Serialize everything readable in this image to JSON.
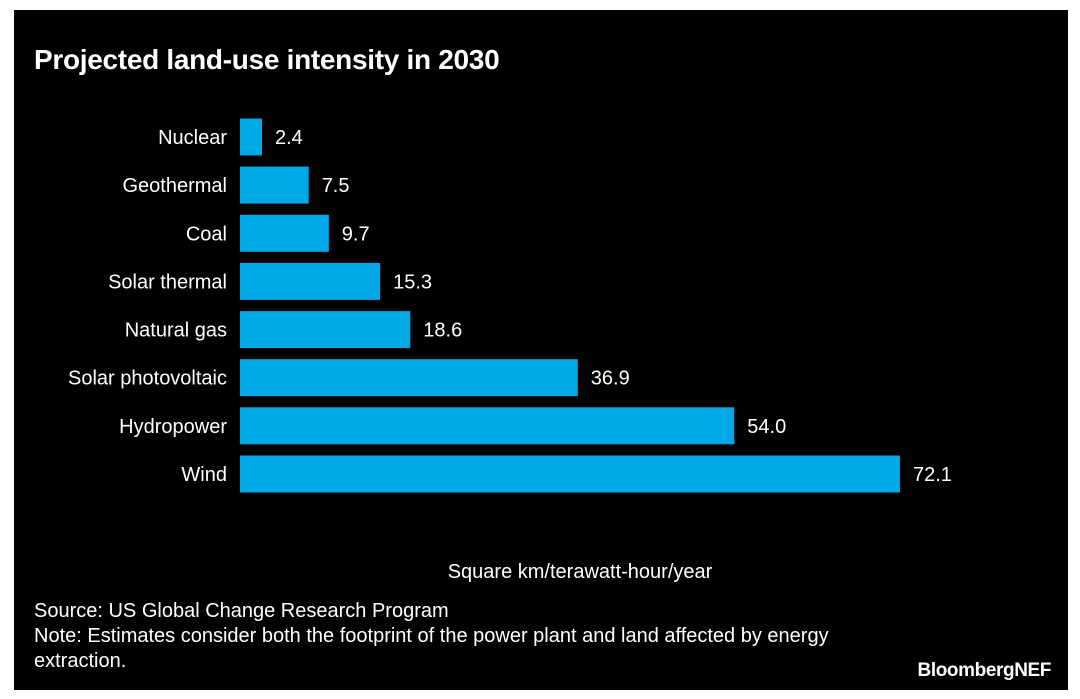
{
  "title": "Projected land-use intensity in 2030",
  "xlabel": "Square km/terawatt-hour/year",
  "source": "Source: US Global Change Research Program",
  "note": "Note: Estimates consider both the footprint of the power plant and land affected by energy extraction.",
  "brand": "BloombergNEF",
  "colors": {
    "background": "#000000",
    "bar": "#00a9e6",
    "text": "#ffffff"
  },
  "chart_data": {
    "type": "bar",
    "orientation": "horizontal",
    "title": "Projected land-use intensity in 2030",
    "xlabel": "Square km/terawatt-hour/year",
    "ylabel": "",
    "categories": [
      "Nuclear",
      "Geothermal",
      "Coal",
      "Solar thermal",
      "Natural gas",
      "Solar photovoltaic",
      "Hydropower",
      "Wind"
    ],
    "values": [
      2.4,
      7.5,
      9.7,
      15.3,
      18.6,
      36.9,
      54.0,
      72.1
    ],
    "value_labels": [
      "2.4",
      "7.5",
      "9.7",
      "15.3",
      "18.6",
      "36.9",
      "54.0",
      "72.1"
    ],
    "xlim": [
      0,
      72.1
    ],
    "grid": false,
    "legend": "none"
  }
}
